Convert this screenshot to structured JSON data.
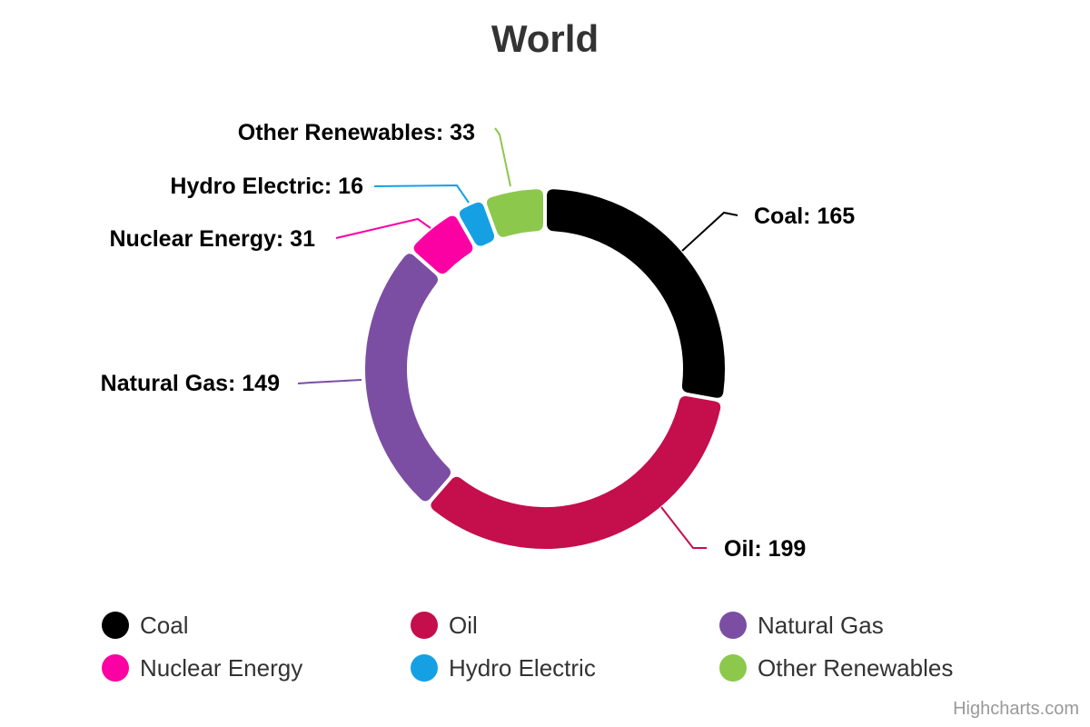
{
  "title": "World",
  "credits": "Highcharts.com",
  "chart_data": {
    "type": "pie",
    "subtype": "donut",
    "title": "World",
    "total": 593,
    "start_angle_deg": 0,
    "direction": "clockwise",
    "inner_radius_ratio": 0.75,
    "legend_position": "bottom",
    "series": [
      {
        "name": "Coal",
        "value": 165,
        "color": "#000000",
        "label": "Coal: 165"
      },
      {
        "name": "Oil",
        "value": 199,
        "color": "#C50E4C",
        "label": "Oil: 199"
      },
      {
        "name": "Natural Gas",
        "value": 149,
        "color": "#7B4EA3",
        "label": "Natural Gas: 149"
      },
      {
        "name": "Nuclear Energy",
        "value": 31,
        "color": "#FB00A3",
        "label": "Nuclear Energy: 31"
      },
      {
        "name": "Hydro Electric",
        "value": 16,
        "color": "#16A0E4",
        "label": "Hydro Electric: 16"
      },
      {
        "name": "Other Renewables",
        "value": 33,
        "color": "#8CC84B",
        "label": "Other Renewables: 33"
      }
    ]
  }
}
